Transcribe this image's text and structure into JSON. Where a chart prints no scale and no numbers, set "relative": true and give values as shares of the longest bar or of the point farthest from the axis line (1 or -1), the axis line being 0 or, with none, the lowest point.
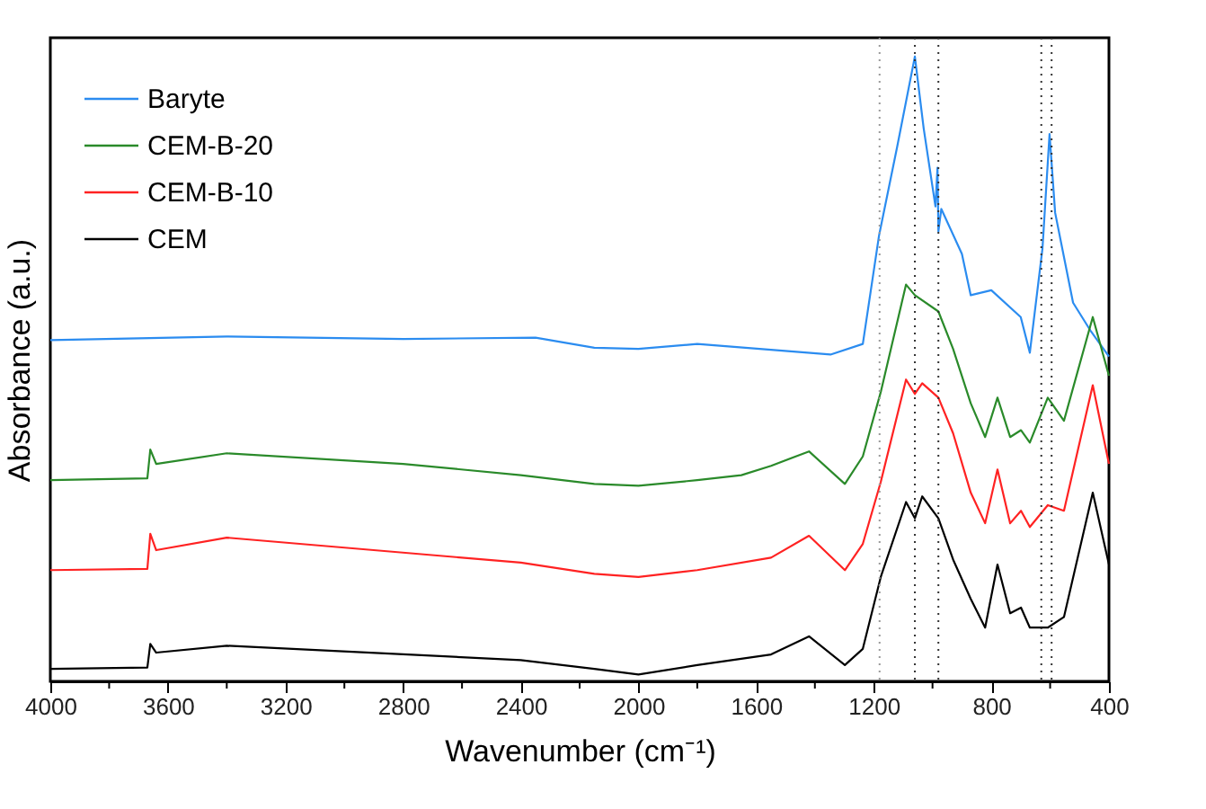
{
  "chart_data": {
    "type": "line",
    "relative": true,
    "xlabel": "Wavenumber (cm⁻¹)",
    "ylabel": "Absorbance (a.u.)",
    "xlim": [
      4000,
      400
    ],
    "xticks": [
      4000,
      {
        "value": 3800,
        "label": null
      },
      3600,
      {
        "value": 3400,
        "label": null
      },
      3200,
      {
        "value": 3000,
        "label": null
      },
      2800,
      {
        "value": 2600,
        "label": null
      },
      2400,
      {
        "value": 2200,
        "label": null
      },
      2000,
      {
        "value": 1800,
        "label": null
      },
      1600,
      {
        "value": 1400,
        "label": null
      },
      1200,
      {
        "value": 1000,
        "label": null
      },
      800,
      {
        "value": 600,
        "label": null
      },
      400
    ],
    "legend": "top left",
    "grid": false,
    "line_style": "solid",
    "marker": "none",
    "series": [
      {
        "name": "Baryte",
        "color": "#2b8cf0",
        "x": [
          4000,
          3400,
          2800,
          2350,
          2150,
          2000,
          1800,
          1347,
          1237,
          1182,
          1120,
          1060,
          1030,
          990,
          983,
          980,
          970,
          900,
          870,
          800,
          700,
          669,
          626,
          602,
          583,
          522,
          461,
          400
        ],
        "values": [
          0.546,
          0.552,
          0.548,
          0.55,
          0.534,
          0.532,
          0.54,
          0.523,
          0.54,
          0.713,
          0.856,
          1.0,
          0.885,
          0.76,
          0.822,
          0.72,
          0.756,
          0.684,
          0.618,
          0.626,
          0.583,
          0.526,
          0.693,
          0.876,
          0.75,
          0.606,
          0.56,
          0.52
        ]
      },
      {
        "name": "CEM-B-20",
        "color": "#2a8a2a",
        "x": [
          4000,
          3670,
          3660,
          3640,
          3400,
          2800,
          2400,
          2150,
          2000,
          1800,
          1650,
          1549,
          1420,
          1298,
          1237,
          1176,
          1090,
          1060,
          980,
          930,
          870,
          821,
          779,
          736,
          699,
          669,
          608,
          553,
          455,
          400
        ],
        "values": [
          0.322,
          0.325,
          0.371,
          0.348,
          0.365,
          0.348,
          0.33,
          0.316,
          0.313,
          0.322,
          0.33,
          0.345,
          0.368,
          0.316,
          0.36,
          0.463,
          0.635,
          0.618,
          0.592,
          0.532,
          0.445,
          0.391,
          0.454,
          0.391,
          0.402,
          0.382,
          0.454,
          0.417,
          0.583,
          0.489
        ]
      },
      {
        "name": "CEM-B-10",
        "color": "#ff2222",
        "x": [
          4000,
          3670,
          3660,
          3640,
          3400,
          2400,
          2150,
          2000,
          1800,
          1549,
          1420,
          1298,
          1237,
          1176,
          1090,
          1060,
          1035,
          980,
          930,
          870,
          821,
          779,
          736,
          699,
          669,
          608,
          553,
          455,
          400
        ],
        "values": [
          0.178,
          0.18,
          0.236,
          0.21,
          0.23,
          0.19,
          0.172,
          0.167,
          0.178,
          0.198,
          0.233,
          0.178,
          0.22,
          0.319,
          0.483,
          0.46,
          0.477,
          0.454,
          0.397,
          0.302,
          0.253,
          0.339,
          0.253,
          0.273,
          0.247,
          0.282,
          0.273,
          0.474,
          0.348
        ]
      },
      {
        "name": "CEM",
        "color": "#000000",
        "x": [
          4000,
          3670,
          3660,
          3640,
          3400,
          2400,
          2150,
          2000,
          1800,
          1549,
          1420,
          1298,
          1237,
          1176,
          1090,
          1060,
          1035,
          980,
          930,
          870,
          821,
          779,
          736,
          699,
          669,
          608,
          553,
          455,
          400
        ],
        "values": [
          0.02,
          0.022,
          0.06,
          0.046,
          0.057,
          0.034,
          0.02,
          0.011,
          0.026,
          0.043,
          0.072,
          0.026,
          0.052,
          0.167,
          0.287,
          0.261,
          0.296,
          0.261,
          0.195,
          0.132,
          0.086,
          0.187,
          0.109,
          0.118,
          0.086,
          0.086,
          0.103,
          0.302,
          0.187
        ]
      }
    ],
    "ref_lines": [
      {
        "axis": "x",
        "value": 1180,
        "color": "#999999",
        "line_style": "dotted"
      },
      {
        "axis": "x",
        "value": 1060,
        "color": "#333333",
        "line_style": "dotted"
      },
      {
        "axis": "x",
        "value": 980,
        "color": "#333333",
        "line_style": "dotted"
      },
      {
        "axis": "x",
        "value": 630,
        "color": "#333333",
        "line_style": "dotted"
      },
      {
        "axis": "x",
        "value": 595,
        "color": "#333333",
        "line_style": "dotted"
      }
    ]
  }
}
